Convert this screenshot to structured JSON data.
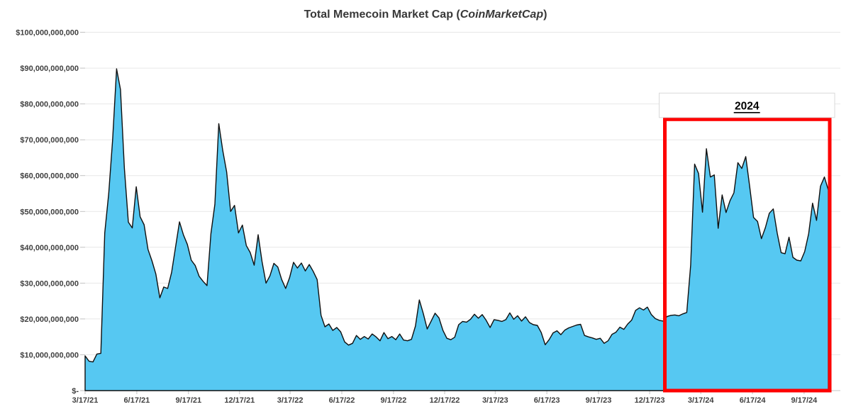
{
  "chart_title": {
    "prefix": "Total Memecoin Market Cap (",
    "emphasis": "CoinMarketCap",
    "suffix": ")"
  },
  "annotation": {
    "label": "2024",
    "box_start_date": "1/13/24",
    "box_top_billions": 75.7
  },
  "y_axis": {
    "tick_labels_top_to_bottom": [
      "$100,000,000,000",
      "$90,000,000,000",
      "$80,000,000,000",
      "$70,000,000,000",
      "$60,000,000,000",
      "$50,000,000,000",
      "$40,000,000,000",
      "$30,000,000,000",
      "$20,000,000,000",
      "$10,000,000,000",
      "$-"
    ],
    "min_billions": 0,
    "max_billions": 100
  },
  "x_axis": {
    "tick_labels": [
      "3/17/21",
      "6/17/21",
      "9/17/21",
      "12/17/21",
      "3/17/22",
      "6/17/22",
      "9/17/22",
      "12/17/22",
      "3/17/23",
      "6/17/23",
      "9/17/23",
      "12/17/23",
      "3/17/24",
      "6/17/24",
      "9/17/24"
    ]
  },
  "colors": {
    "area_fill": "#56C8F2",
    "area_stroke": "#0F0F0F",
    "highlight_red": "#FE0000",
    "gridline": "#E7E7E7",
    "axis_line": "#C6C6C6",
    "tick_mark": "#C2C2C2",
    "annotation_border": "#D9D9D9",
    "axis_text": "#404040",
    "title_text": "#383838"
  },
  "chart_data": {
    "type": "area",
    "title": "Total Memecoin Market Cap (CoinMarketCap)",
    "xlabel": "",
    "ylabel": "",
    "unit": "USD billions",
    "ylim_billions": [
      0,
      100
    ],
    "grid": "horizontal",
    "legend": "none",
    "highlight": {
      "label": "2024",
      "from_date": "1/13/24",
      "to_date": "10/30/24"
    },
    "dates": [
      "3/17/21",
      "3/24/21",
      "3/31/21",
      "4/7/21",
      "4/14/21",
      "4/21/21",
      "4/28/21",
      "5/5/21",
      "5/12/21",
      "5/19/21",
      "5/26/21",
      "6/2/21",
      "6/9/21",
      "6/16/21",
      "6/23/21",
      "6/30/21",
      "7/7/21",
      "7/14/21",
      "7/21/21",
      "7/28/21",
      "8/4/21",
      "8/11/21",
      "8/18/21",
      "8/25/21",
      "9/1/21",
      "9/8/21",
      "9/15/21",
      "9/22/21",
      "9/29/21",
      "10/6/21",
      "10/13/21",
      "10/20/21",
      "10/27/21",
      "11/3/21",
      "11/10/21",
      "11/17/21",
      "11/24/21",
      "12/1/21",
      "12/8/21",
      "12/15/21",
      "12/22/21",
      "12/29/21",
      "1/5/22",
      "1/12/22",
      "1/19/22",
      "1/26/22",
      "2/2/22",
      "2/9/22",
      "2/16/22",
      "2/23/22",
      "3/2/22",
      "3/9/22",
      "3/16/22",
      "3/23/22",
      "3/30/22",
      "4/6/22",
      "4/13/22",
      "4/20/22",
      "4/27/22",
      "5/4/22",
      "5/11/22",
      "5/18/22",
      "5/25/22",
      "6/1/22",
      "6/8/22",
      "6/15/22",
      "6/22/22",
      "6/29/22",
      "7/6/22",
      "7/13/22",
      "7/20/22",
      "7/27/22",
      "8/3/22",
      "8/10/22",
      "8/17/22",
      "8/24/22",
      "8/31/22",
      "9/7/22",
      "9/14/22",
      "9/21/22",
      "9/28/22",
      "10/5/22",
      "10/12/22",
      "10/19/22",
      "10/26/22",
      "11/2/22",
      "11/9/22",
      "11/16/22",
      "11/23/22",
      "11/30/22",
      "12/7/22",
      "12/14/22",
      "12/21/22",
      "12/28/22",
      "1/4/23",
      "1/11/23",
      "1/18/23",
      "1/25/23",
      "2/1/23",
      "2/8/23",
      "2/15/23",
      "2/22/23",
      "3/1/23",
      "3/8/23",
      "3/15/23",
      "3/22/23",
      "3/29/23",
      "4/5/23",
      "4/12/23",
      "4/19/23",
      "4/26/23",
      "5/3/23",
      "5/10/23",
      "5/17/23",
      "5/24/23",
      "5/31/23",
      "6/7/23",
      "6/14/23",
      "6/21/23",
      "6/28/23",
      "7/5/23",
      "7/12/23",
      "7/19/23",
      "7/26/23",
      "8/2/23",
      "8/9/23",
      "8/16/23",
      "8/23/23",
      "8/30/23",
      "9/6/23",
      "9/13/23",
      "9/20/23",
      "9/27/23",
      "10/4/23",
      "10/11/23",
      "10/18/23",
      "10/25/23",
      "11/1/23",
      "11/8/23",
      "11/15/23",
      "11/22/23",
      "11/29/23",
      "12/6/23",
      "12/13/23",
      "12/20/23",
      "12/27/23",
      "1/3/24",
      "1/10/24",
      "1/17/24",
      "1/24/24",
      "1/31/24",
      "2/7/24",
      "2/14/24",
      "2/21/24",
      "2/28/24",
      "3/6/24",
      "3/13/24",
      "3/20/24",
      "3/27/24",
      "4/3/24",
      "4/10/24",
      "4/17/24",
      "4/24/24",
      "5/1/24",
      "5/8/24",
      "5/15/24",
      "5/22/24",
      "5/29/24",
      "6/5/24",
      "6/12/24",
      "6/19/24",
      "6/26/24",
      "7/3/24",
      "7/10/24",
      "7/17/24",
      "7/24/24",
      "7/31/24",
      "8/7/24",
      "8/14/24",
      "8/21/24",
      "8/28/24",
      "9/4/24",
      "9/11/24",
      "9/18/24",
      "9/25/24",
      "10/2/24",
      "10/9/24",
      "10/16/24",
      "10/23/24",
      "10/30/24"
    ],
    "values_billions": [
      9.7,
      8.2,
      8.0,
      10.2,
      10.4,
      44.0,
      55.0,
      70.0,
      89.8,
      84.0,
      62.0,
      47.0,
      45.4,
      56.9,
      48.5,
      46.3,
      39.4,
      36.2,
      32.5,
      25.9,
      28.9,
      28.5,
      33.0,
      40.0,
      47.1,
      43.5,
      40.8,
      36.4,
      34.9,
      31.9,
      30.5,
      29.3,
      43.8,
      52.0,
      74.5,
      67.0,
      61.0,
      50.0,
      51.7,
      44.0,
      46.2,
      40.5,
      38.5,
      35.0,
      43.5,
      36.0,
      30.0,
      32.0,
      35.5,
      34.5,
      31.0,
      28.5,
      31.5,
      35.8,
      34.2,
      35.6,
      33.4,
      35.2,
      33.3,
      31.0,
      21.0,
      17.8,
      18.6,
      16.8,
      17.6,
      16.4,
      13.6,
      12.7,
      13.2,
      15.4,
      14.3,
      15.1,
      14.4,
      15.8,
      15.0,
      13.9,
      16.2,
      14.5,
      15.1,
      14.2,
      15.8,
      14.1,
      13.9,
      14.3,
      18.0,
      25.3,
      21.5,
      17.2,
      19.4,
      21.6,
      20.3,
      16.8,
      14.6,
      14.2,
      14.9,
      18.4,
      19.3,
      19.1,
      19.9,
      21.3,
      20.2,
      21.2,
      19.6,
      17.6,
      19.8,
      19.6,
      19.3,
      19.8,
      21.7,
      19.9,
      20.9,
      19.4,
      20.6,
      19.0,
      18.4,
      18.2,
      16.2,
      12.8,
      14.2,
      16.1,
      16.7,
      15.6,
      16.9,
      17.5,
      17.9,
      18.3,
      18.5,
      15.4,
      15.0,
      14.7,
      14.3,
      14.6,
      13.2,
      13.9,
      15.7,
      16.3,
      17.7,
      17.1,
      18.6,
      19.7,
      22.4,
      23.1,
      22.5,
      23.3,
      21.2,
      20.1,
      19.6,
      19.4,
      20.7,
      21.0,
      21.1,
      20.9,
      21.4,
      21.8,
      35.0,
      63.2,
      60.6,
      49.8,
      67.5,
      59.6,
      60.2,
      45.3,
      54.6,
      49.7,
      53.0,
      55.2,
      63.6,
      62.0,
      65.3,
      57.0,
      48.3,
      47.2,
      42.4,
      45.5,
      49.5,
      50.7,
      44.0,
      38.5,
      38.2,
      42.8,
      37.2,
      36.4,
      36.2,
      38.8,
      43.8,
      52.3,
      47.5,
      57.0,
      59.6,
      56.0
    ]
  }
}
